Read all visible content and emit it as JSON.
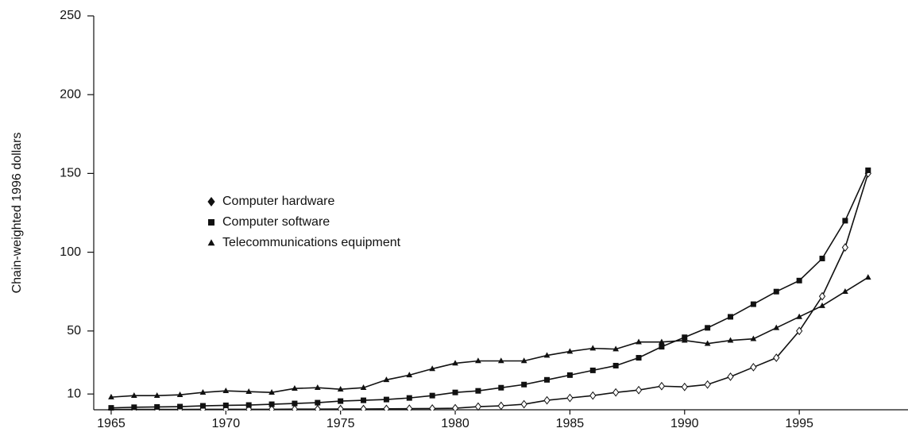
{
  "chart_data": {
    "type": "line",
    "y_label": "Chain-weighted 1996 dollars",
    "x": [
      1965,
      1966,
      1967,
      1968,
      1969,
      1970,
      1971,
      1972,
      1973,
      1974,
      1975,
      1976,
      1977,
      1978,
      1979,
      1980,
      1981,
      1982,
      1983,
      1984,
      1985,
      1986,
      1987,
      1988,
      1989,
      1990,
      1991,
      1992,
      1993,
      1994,
      1995,
      1996,
      1997,
      1998
    ],
    "series": [
      {
        "name": "Computer hardware",
        "color": "#111111",
        "marker": "diamond",
        "values": [
          0.2,
          0.2,
          0.2,
          0.2,
          0.3,
          0.3,
          0.3,
          0.3,
          0.4,
          0.4,
          0.5,
          0.5,
          0.6,
          0.7,
          0.8,
          1,
          2,
          2.5,
          3.5,
          6,
          7.5,
          9,
          11,
          12.5,
          15,
          14.5,
          16,
          21,
          27,
          33,
          50,
          72,
          103,
          150
        ]
      },
      {
        "name": "Computer software",
        "color": "#111111",
        "marker": "square",
        "values": [
          1.2,
          1.6,
          1.8,
          2,
          2.5,
          2.8,
          3,
          3.5,
          4,
          4.5,
          5.5,
          6,
          6.5,
          7.5,
          9,
          11,
          12,
          14,
          16,
          19,
          22,
          25,
          28,
          33,
          40,
          46,
          52,
          59,
          67,
          75,
          82,
          96,
          120,
          152
        ]
      },
      {
        "name": "Telecommunications equipment",
        "color": "#111111",
        "marker": "triangle",
        "values": [
          8,
          9,
          9,
          9.5,
          11,
          12,
          11.5,
          11,
          13.5,
          14,
          13,
          14,
          19,
          22,
          26,
          29.5,
          31,
          31,
          31,
          34.5,
          37,
          39,
          38.5,
          43,
          43,
          44,
          42,
          44,
          45,
          52,
          59,
          66,
          75,
          84
        ]
      }
    ],
    "xlim": [
      1964.24,
      1999.74
    ],
    "xticks": [
      1965,
      1970,
      1975,
      1980,
      1985,
      1990,
      1995
    ],
    "ylim": [
      0,
      250
    ],
    "yticks": [
      10,
      50,
      100,
      150,
      200,
      250
    ],
    "grid": false
  }
}
